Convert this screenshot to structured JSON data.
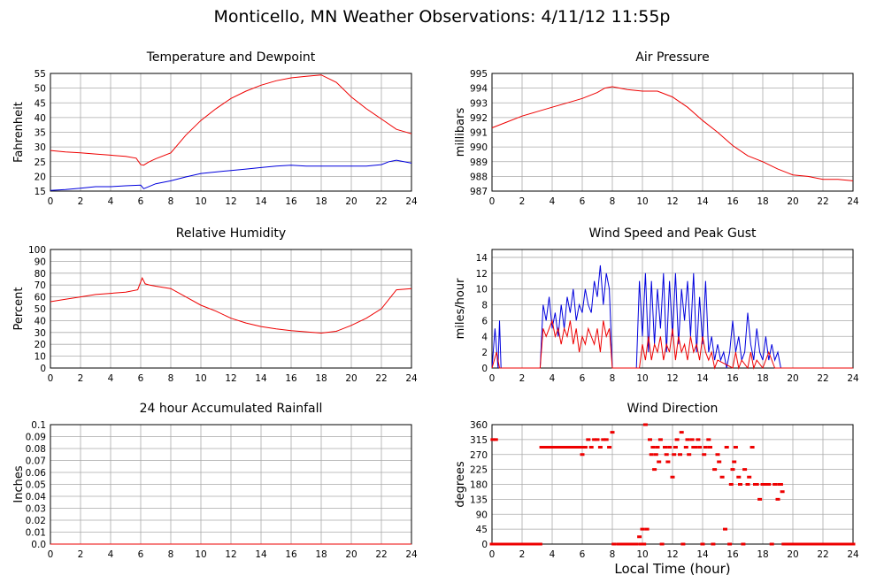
{
  "title": "Monticello, MN Weather Observations: 4/11/12 11:55p",
  "xlabel_bottom": "Local Time (hour)",
  "colors": {
    "red": "#ee0000",
    "blue": "#0000dd",
    "grid": "#aaaaaa"
  },
  "chart_data": [
    {
      "id": "temp",
      "type": "line",
      "title": "Temperature and Dewpoint",
      "ylabel": "Fahrenheit",
      "xlim": [
        0,
        24
      ],
      "ylim": [
        15,
        55
      ],
      "xticks": [
        "0",
        "2",
        "4",
        "6",
        "8",
        "10",
        "12",
        "14",
        "16",
        "18",
        "20",
        "22",
        "24"
      ],
      "yticks": [
        "15",
        "20",
        "25",
        "30",
        "35",
        "40",
        "45",
        "50",
        "55"
      ],
      "series": [
        {
          "color": "red",
          "x": [
            0,
            1,
            2,
            3,
            4,
            5,
            5.7,
            6,
            6.2,
            6.5,
            7,
            8,
            9,
            10,
            11,
            12,
            13,
            14,
            15,
            16,
            17,
            18,
            19,
            20,
            21,
            22,
            23,
            24
          ],
          "y": [
            28.8,
            28.3,
            28,
            27.6,
            27.2,
            26.8,
            26.2,
            24,
            23.8,
            24.8,
            26,
            28,
            34,
            39,
            43,
            46.5,
            49,
            51,
            52.5,
            53.5,
            54,
            54.5,
            52,
            47,
            43,
            39.5,
            36,
            34.5
          ]
        },
        {
          "color": "blue",
          "x": [
            0,
            1,
            2,
            3,
            4,
            5,
            6,
            6.2,
            7,
            8,
            9,
            10,
            11,
            12,
            13,
            14,
            15,
            16,
            17,
            18,
            19,
            20,
            21,
            22,
            22.5,
            23,
            24
          ],
          "y": [
            15.2,
            15.5,
            16,
            16.5,
            16.5,
            16.8,
            17,
            15.8,
            17.5,
            18.5,
            19.8,
            21,
            21.5,
            22,
            22.5,
            23,
            23.5,
            23.8,
            23.5,
            23.5,
            23.5,
            23.5,
            23.5,
            24,
            25,
            25.5,
            24.5
          ]
        }
      ]
    },
    {
      "id": "pressure",
      "type": "line",
      "title": "Air Pressure",
      "ylabel": "millibars",
      "xlim": [
        0,
        24
      ],
      "ylim": [
        987,
        995
      ],
      "xticks": [
        "0",
        "2",
        "4",
        "6",
        "8",
        "10",
        "12",
        "14",
        "16",
        "18",
        "20",
        "22",
        "24"
      ],
      "yticks": [
        "987",
        "988",
        "989",
        "990",
        "991",
        "992",
        "993",
        "994",
        "995"
      ],
      "series": [
        {
          "color": "red",
          "x": [
            0,
            1,
            2,
            3,
            4,
            5,
            6,
            7,
            7.5,
            8,
            9,
            10,
            11,
            12,
            13,
            14,
            15,
            16,
            17,
            18,
            19,
            20,
            21,
            22,
            23,
            24
          ],
          "y": [
            991.3,
            991.7,
            992.1,
            992.4,
            992.7,
            993,
            993.3,
            993.7,
            994,
            994.1,
            993.9,
            993.8,
            993.8,
            993.4,
            992.7,
            991.8,
            991,
            990.1,
            989.4,
            989,
            988.5,
            988.1,
            988,
            987.8,
            987.8,
            987.7
          ]
        }
      ]
    },
    {
      "id": "humidity",
      "type": "line",
      "title": "Relative Humidity",
      "ylabel": "Percent",
      "xlim": [
        0,
        24
      ],
      "ylim": [
        0,
        100
      ],
      "xticks": [
        "0",
        "2",
        "4",
        "6",
        "8",
        "10",
        "12",
        "14",
        "16",
        "18",
        "20",
        "22",
        "24"
      ],
      "yticks": [
        "0",
        "10",
        "20",
        "30",
        "40",
        "50",
        "60",
        "70",
        "80",
        "90",
        "100"
      ],
      "series": [
        {
          "color": "red",
          "x": [
            0,
            1,
            2,
            3,
            4,
            5,
            5.8,
            6.1,
            6.3,
            6.6,
            7,
            8,
            9,
            10,
            11,
            12,
            13,
            14,
            15,
            16,
            17,
            18,
            19,
            20,
            21,
            22,
            23,
            24
          ],
          "y": [
            56,
            58,
            60,
            62,
            63,
            64,
            66,
            76,
            71,
            70,
            69,
            67,
            60,
            53,
            48,
            42,
            38,
            35,
            33,
            31.5,
            30.5,
            29.5,
            31,
            36,
            42,
            50,
            66,
            67
          ]
        }
      ]
    },
    {
      "id": "wind",
      "type": "line",
      "title": "Wind Speed and Peak Gust",
      "ylabel": "miles/hour",
      "xlim": [
        0,
        24
      ],
      "ylim": [
        0,
        15
      ],
      "xticks": [
        "0",
        "2",
        "4",
        "6",
        "8",
        "10",
        "12",
        "14",
        "16",
        "18",
        "20",
        "22",
        "24"
      ],
      "yticks": [
        "0",
        "2",
        "4",
        "6",
        "8",
        "10",
        "12",
        "14"
      ],
      "series": [
        {
          "color": "blue",
          "x": [
            0,
            0.2,
            0.4,
            0.5,
            0.6,
            3.2,
            3.4,
            3.6,
            3.8,
            4,
            4.2,
            4.4,
            4.6,
            4.8,
            5,
            5.2,
            5.4,
            5.6,
            5.8,
            6,
            6.2,
            6.4,
            6.6,
            6.8,
            7,
            7.2,
            7.4,
            7.6,
            7.8,
            8,
            8.2,
            9.6,
            9.8,
            10,
            10.2,
            10.4,
            10.6,
            10.8,
            11,
            11.2,
            11.4,
            11.6,
            11.8,
            12,
            12.2,
            12.4,
            12.6,
            12.8,
            13,
            13.2,
            13.4,
            13.6,
            13.8,
            14,
            14.2,
            14.4,
            14.6,
            14.8,
            15,
            15.2,
            15.4,
            15.6,
            15.8,
            16,
            16.2,
            16.4,
            16.6,
            16.8,
            17,
            17.2,
            17.4,
            17.6,
            17.8,
            18,
            18.2,
            18.4,
            18.6,
            18.8,
            19,
            19.2,
            19.4,
            24
          ],
          "y": [
            0,
            5,
            0,
            6,
            0,
            0,
            8,
            6,
            9,
            5,
            7,
            4,
            8,
            5,
            9,
            7,
            10,
            6,
            8,
            7,
            10,
            8,
            7,
            11,
            9,
            13,
            8,
            12,
            10,
            0,
            0,
            0,
            11,
            4,
            12,
            2,
            11,
            3,
            10,
            5,
            12,
            2,
            11,
            4,
            12,
            3,
            10,
            6,
            11,
            4,
            12,
            2,
            9,
            3,
            11,
            2,
            4,
            1,
            3,
            1,
            2,
            0,
            2,
            6,
            2,
            4,
            1,
            2,
            7,
            3,
            1,
            5,
            2,
            1,
            4,
            1,
            3,
            1,
            2,
            0,
            0,
            0
          ]
        },
        {
          "color": "red",
          "x": [
            0,
            0.3,
            0.5,
            0.7,
            3.2,
            3.4,
            3.6,
            3.8,
            4,
            4.2,
            4.4,
            4.6,
            4.8,
            5,
            5.2,
            5.4,
            5.6,
            5.8,
            6,
            6.2,
            6.4,
            6.6,
            6.8,
            7,
            7.2,
            7.4,
            7.6,
            7.8,
            8,
            9.8,
            10,
            10.2,
            10.4,
            10.6,
            10.8,
            11,
            11.2,
            11.4,
            11.6,
            11.8,
            12,
            12.2,
            12.4,
            12.6,
            12.8,
            13,
            13.2,
            13.4,
            13.6,
            13.8,
            14,
            14.2,
            14.4,
            14.6,
            14.8,
            15,
            16,
            16.2,
            16.4,
            16.6,
            17,
            17.2,
            17.4,
            17.6,
            18,
            18.4,
            18.8,
            19,
            24
          ],
          "y": [
            0,
            2,
            0,
            0,
            0,
            5,
            4,
            5,
            6,
            4,
            5,
            3,
            5,
            4,
            6,
            3,
            5,
            2,
            4,
            3,
            5,
            4,
            3,
            5,
            2,
            6,
            4,
            5,
            0,
            0,
            3,
            1,
            4,
            1,
            3,
            2,
            4,
            1,
            3,
            2,
            5,
            1,
            4,
            2,
            3,
            1,
            4,
            2,
            3,
            1,
            4,
            2,
            1,
            2,
            0,
            1,
            0,
            2,
            0,
            1,
            0,
            2,
            0,
            1,
            0,
            2,
            0,
            0,
            0
          ]
        }
      ]
    },
    {
      "id": "rain",
      "type": "line",
      "title": "24 hour Accumulated Rainfall",
      "ylabel": "Inches",
      "xlim": [
        0,
        24
      ],
      "ylim": [
        0,
        0.1
      ],
      "xticks": [
        "0",
        "2",
        "4",
        "6",
        "8",
        "10",
        "12",
        "14",
        "16",
        "18",
        "20",
        "22",
        "24"
      ],
      "yticks": [
        "0.0",
        "0.01",
        "0.02",
        "0.03",
        "0.04",
        "0.05",
        "0.06",
        "0.07",
        "0.08",
        "0.09",
        "0.1"
      ],
      "series": [
        {
          "color": "red",
          "x": [
            0,
            24
          ],
          "y": [
            0,
            0
          ]
        }
      ]
    },
    {
      "id": "direction",
      "type": "scatter",
      "title": "Wind Direction",
      "ylabel": "degrees",
      "xlim": [
        0,
        24
      ],
      "ylim": [
        0,
        360
      ],
      "xticks": [
        "0",
        "2",
        "4",
        "6",
        "8",
        "10",
        "12",
        "14",
        "16",
        "18",
        "20",
        "22",
        "24"
      ],
      "yticks": [
        "0",
        "45",
        "90",
        "135",
        "180",
        "225",
        "270",
        "315",
        "360"
      ],
      "series": [
        {
          "color": "red",
          "x": [
            0,
            0.2,
            0.4,
            0.6,
            0.8,
            1,
            1.2,
            1.4,
            1.6,
            1.8,
            2,
            2.2,
            2.4,
            2.6,
            2.8,
            3,
            3.2,
            3.3,
            3.5,
            3.7,
            3.9,
            4.1,
            4.3,
            4.5,
            4.7,
            4.9,
            5.1,
            5.3,
            5.5,
            5.7,
            5.9,
            6,
            6.1,
            6.2,
            6.4,
            6.6,
            6.8,
            7,
            7.2,
            7.4,
            7.6,
            7.8,
            8,
            8.1,
            8.4,
            8.6,
            8.8,
            9,
            9.2,
            9.4,
            9.6,
            9.8,
            9.9,
            10,
            10.1,
            10.2,
            10.3,
            10.5,
            10.6,
            10.7,
            10.8,
            10.9,
            11,
            11.1,
            11.2,
            11.3,
            11.5,
            11.6,
            11.7,
            11.8,
            12,
            12.1,
            12.2,
            12.3,
            12.5,
            12.6,
            12.7,
            12.9,
            13,
            13.1,
            13.3,
            13.4,
            13.5,
            13.7,
            13.8,
            14,
            14.1,
            14.2,
            14.4,
            14.5,
            14.7,
            14.8,
            15,
            15.1,
            15.3,
            15.5,
            15.6,
            15.8,
            15.9,
            16,
            16.1,
            16.2,
            16.4,
            16.5,
            16.7,
            16.8,
            17,
            17.1,
            17.3,
            17.5,
            17.6,
            17.8,
            18,
            18.1,
            18.3,
            18.4,
            18.6,
            18.8,
            19,
            19.1,
            19.2,
            19.3,
            19.4,
            19.6,
            19.8,
            20,
            20.2,
            20.4,
            20.6,
            20.8,
            21,
            21.2,
            21.4,
            21.6,
            21.8,
            22,
            22.2,
            22.4,
            22.6,
            22.8,
            23,
            23.2,
            23.4,
            23.6,
            23.8,
            24,
            0.05,
            0.25
          ],
          "y": [
            0,
            0,
            0,
            0,
            0,
            0,
            0,
            0,
            0,
            0,
            0,
            0,
            0,
            0,
            0,
            0,
            0,
            292,
            292,
            292,
            292,
            292,
            292,
            292,
            292,
            292,
            292,
            292,
            292,
            292,
            292,
            270,
            292,
            292,
            315,
            292,
            315,
            315,
            292,
            315,
            315,
            292,
            337,
            0,
            0,
            0,
            0,
            0,
            0,
            0,
            0,
            22,
            0,
            45,
            0,
            360,
            45,
            315,
            270,
            292,
            225,
            270,
            292,
            248,
            315,
            0,
            292,
            270,
            248,
            292,
            202,
            270,
            292,
            315,
            270,
            337,
            0,
            292,
            315,
            270,
            315,
            292,
            292,
            315,
            292,
            0,
            270,
            292,
            315,
            292,
            0,
            225,
            270,
            248,
            202,
            45,
            292,
            0,
            180,
            225,
            248,
            292,
            202,
            180,
            0,
            225,
            180,
            202,
            292,
            180,
            180,
            135,
            180,
            180,
            180,
            180,
            0,
            180,
            135,
            180,
            180,
            158,
            0,
            0,
            0,
            0,
            0,
            0,
            0,
            0,
            0,
            0,
            0,
            0,
            0,
            0,
            0,
            0,
            0,
            0,
            0,
            0,
            0,
            0,
            0,
            0,
            315,
            315
          ]
        }
      ]
    }
  ]
}
